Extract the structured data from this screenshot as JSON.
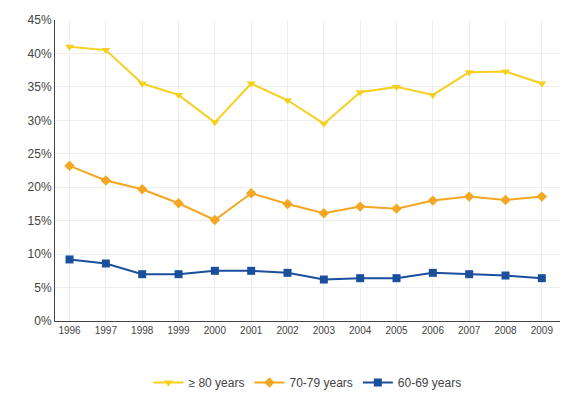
{
  "chart_data": {
    "type": "line",
    "x": [
      1996,
      1997,
      1998,
      1999,
      2000,
      2001,
      2002,
      2003,
      2004,
      2005,
      2006,
      2007,
      2008,
      2009
    ],
    "series": [
      {
        "name": "≥ 80 years",
        "color": "#f5d020",
        "marker": "triangle-down",
        "values": [
          0.41,
          0.405,
          0.355,
          0.338,
          0.297,
          0.355,
          0.33,
          0.295,
          0.342,
          0.35,
          0.338,
          0.372,
          0.373,
          0.355
        ]
      },
      {
        "name": "70-79 years",
        "color": "#f5a623",
        "marker": "diamond",
        "values": [
          0.232,
          0.21,
          0.197,
          0.176,
          0.151,
          0.191,
          0.175,
          0.161,
          0.171,
          0.168,
          0.18,
          0.186,
          0.181,
          0.186
        ]
      },
      {
        "name": "60-69 years",
        "color": "#1a4f9c",
        "marker": "square",
        "values": [
          0.092,
          0.086,
          0.07,
          0.07,
          0.075,
          0.075,
          0.072,
          0.062,
          0.064,
          0.064,
          0.072,
          0.07,
          0.068,
          0.064
        ]
      }
    ],
    "xlim": [
      1995.6,
      2009.5
    ],
    "xticks": [
      1996,
      1997,
      1998,
      1999,
      2000,
      2001,
      2002,
      2003,
      2004,
      2005,
      2006,
      2007,
      2008,
      2009
    ],
    "ylim": [
      0,
      0.45
    ],
    "yticks": [
      {
        "value": 0.0,
        "label": "0%"
      },
      {
        "value": 0.05,
        "label": "5%"
      },
      {
        "value": 0.1,
        "label": "10%"
      },
      {
        "value": 0.15,
        "label": "15%"
      },
      {
        "value": 0.2,
        "label": "20%"
      },
      {
        "value": 0.25,
        "label": "25%"
      },
      {
        "value": 0.3,
        "label": "30%"
      },
      {
        "value": 0.35,
        "label": "35%"
      },
      {
        "value": 0.4,
        "label": "40%"
      },
      {
        "value": 0.45,
        "label": "45%"
      }
    ],
    "grid": true,
    "legend": "bottom"
  }
}
